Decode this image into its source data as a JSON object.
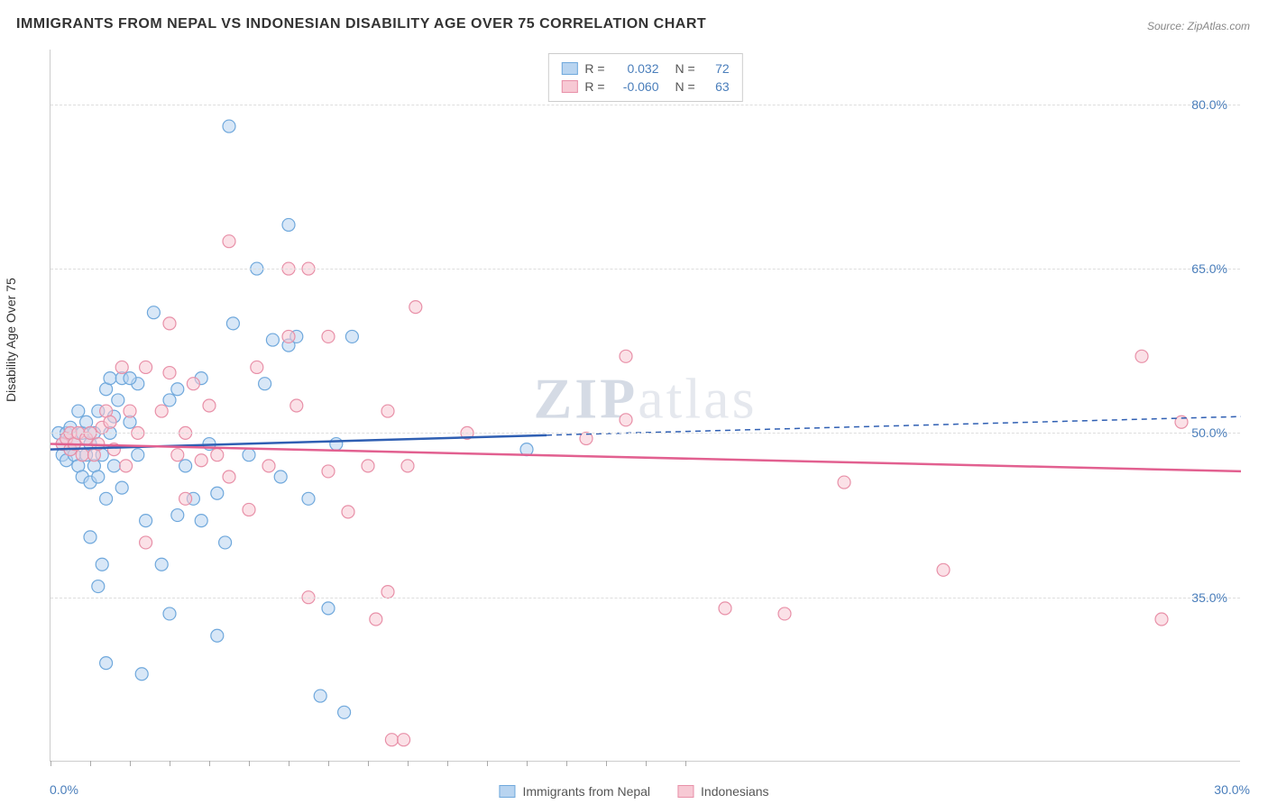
{
  "title": "IMMIGRANTS FROM NEPAL VS INDONESIAN DISABILITY AGE OVER 75 CORRELATION CHART",
  "source_label": "Source:",
  "source_value": "ZipAtlas.com",
  "ylabel": "Disability Age Over 75",
  "watermark_bold": "ZIP",
  "watermark_rest": "atlas",
  "chart": {
    "type": "scatter",
    "background_color": "#ffffff",
    "grid_color": "#dddddd",
    "axis_color": "#cccccc",
    "text_color": "#333333",
    "value_color": "#4a7ebb",
    "xlim": [
      0,
      30
    ],
    "ylim": [
      20,
      85
    ],
    "xticks": [
      0,
      30
    ],
    "xtick_labels": [
      "0.0%",
      "30.0%"
    ],
    "xtick_minor": [
      0,
      1,
      2,
      3,
      4,
      5,
      6,
      7,
      8,
      9,
      10,
      11,
      12,
      13,
      14,
      15,
      16
    ],
    "yticks": [
      35,
      50,
      65,
      80
    ],
    "ytick_labels": [
      "35.0%",
      "50.0%",
      "65.0%",
      "80.0%"
    ],
    "label_fontsize": 14,
    "title_fontsize": 16,
    "marker_radius": 7,
    "marker_opacity": 0.55,
    "line_width": 2.5
  },
  "series": [
    {
      "name": "Immigrants from Nepal",
      "color_fill": "#b8d4f0",
      "color_stroke": "#6fa8dc",
      "line_color": "#2f5fb3",
      "R": "0.032",
      "N": "72",
      "trend": {
        "x1": 0,
        "y1": 48.5,
        "x2": 12.5,
        "y2": 49.8,
        "x1_ext": 12.5,
        "y1_ext": 49.8,
        "x2_ext": 30,
        "y2_ext": 51.5
      },
      "points": [
        [
          0.2,
          50
        ],
        [
          0.3,
          49
        ],
        [
          0.3,
          48
        ],
        [
          0.4,
          50
        ],
        [
          0.4,
          47.5
        ],
        [
          0.5,
          50.5
        ],
        [
          0.5,
          48.5
        ],
        [
          0.6,
          48
        ],
        [
          0.6,
          49
        ],
        [
          0.7,
          47
        ],
        [
          0.7,
          52
        ],
        [
          0.8,
          50
        ],
        [
          0.8,
          46
        ],
        [
          0.9,
          48
        ],
        [
          0.9,
          51
        ],
        [
          1.0,
          49
        ],
        [
          1.0,
          45.5
        ],
        [
          1.1,
          47
        ],
        [
          1.1,
          50
        ],
        [
          1.2,
          52
        ],
        [
          1.2,
          46
        ],
        [
          1.3,
          48
        ],
        [
          1.4,
          54
        ],
        [
          1.4,
          44
        ],
        [
          1.5,
          50
        ],
        [
          1.5,
          55
        ],
        [
          1.6,
          47
        ],
        [
          1.7,
          53
        ],
        [
          1.8,
          55
        ],
        [
          1.8,
          45
        ],
        [
          1.2,
          36
        ],
        [
          1.3,
          38
        ],
        [
          2.0,
          51
        ],
        [
          2.2,
          48
        ],
        [
          2.4,
          42
        ],
        [
          1.0,
          40.5
        ],
        [
          2.2,
          54.5
        ],
        [
          2.6,
          61
        ],
        [
          2.8,
          38
        ],
        [
          3.0,
          53
        ],
        [
          3.2,
          42.5
        ],
        [
          3.2,
          54
        ],
        [
          3.4,
          47
        ],
        [
          3.6,
          44
        ],
        [
          3.8,
          42
        ],
        [
          3.8,
          55
        ],
        [
          4.0,
          49
        ],
        [
          4.2,
          44.5
        ],
        [
          4.4,
          40
        ],
        [
          4.6,
          60
        ],
        [
          4.5,
          78
        ],
        [
          5.0,
          48
        ],
        [
          5.2,
          65
        ],
        [
          5.4,
          54.5
        ],
        [
          5.6,
          58.5
        ],
        [
          5.8,
          46
        ],
        [
          6.0,
          58
        ],
        [
          6.0,
          69
        ],
        [
          6.2,
          58.8
        ],
        [
          7.6,
          58.8
        ],
        [
          6.5,
          44
        ],
        [
          6.8,
          26
        ],
        [
          7.0,
          34
        ],
        [
          7.2,
          49
        ],
        [
          7.4,
          24.5
        ],
        [
          12.0,
          48.5
        ],
        [
          1.4,
          29
        ],
        [
          2.3,
          28
        ],
        [
          4.2,
          31.5
        ],
        [
          3.0,
          33.5
        ],
        [
          1.6,
          51.5
        ],
        [
          2.0,
          55
        ]
      ]
    },
    {
      "name": "Indonesians",
      "color_fill": "#f7c9d4",
      "color_stroke": "#e890a8",
      "line_color": "#e26090",
      "R": "-0.060",
      "N": "63",
      "trend": {
        "x1": 0,
        "y1": 49.0,
        "x2": 30,
        "y2": 46.5
      },
      "points": [
        [
          0.3,
          49
        ],
        [
          0.4,
          49.5
        ],
        [
          0.5,
          48.5
        ],
        [
          0.5,
          50
        ],
        [
          0.6,
          49
        ],
        [
          0.7,
          50
        ],
        [
          0.8,
          48
        ],
        [
          0.9,
          49.5
        ],
        [
          1.0,
          50
        ],
        [
          1.1,
          48
        ],
        [
          1.2,
          49
        ],
        [
          1.3,
          50.5
        ],
        [
          1.4,
          52
        ],
        [
          1.5,
          51
        ],
        [
          1.6,
          48.5
        ],
        [
          1.8,
          56
        ],
        [
          1.9,
          47
        ],
        [
          2.0,
          52
        ],
        [
          2.2,
          50
        ],
        [
          2.4,
          56
        ],
        [
          2.4,
          40
        ],
        [
          2.8,
          52
        ],
        [
          3.0,
          60
        ],
        [
          3.0,
          55.5
        ],
        [
          3.2,
          48
        ],
        [
          3.4,
          44
        ],
        [
          3.4,
          50
        ],
        [
          3.6,
          54.5
        ],
        [
          3.8,
          47.5
        ],
        [
          4.0,
          52.5
        ],
        [
          4.2,
          48
        ],
        [
          4.5,
          46
        ],
        [
          5.0,
          43
        ],
        [
          5.2,
          56
        ],
        [
          5.5,
          47
        ],
        [
          6.0,
          58.8
        ],
        [
          6.2,
          52.5
        ],
        [
          6.5,
          65
        ],
        [
          6.5,
          35
        ],
        [
          7.0,
          46.5
        ],
        [
          7.0,
          58.8
        ],
        [
          7.5,
          42.8
        ],
        [
          8.0,
          47
        ],
        [
          8.2,
          33
        ],
        [
          8.5,
          52
        ],
        [
          8.5,
          35.5
        ],
        [
          8.6,
          22
        ],
        [
          8.9,
          22
        ],
        [
          9.0,
          47
        ],
        [
          9.2,
          61.5
        ],
        [
          10.5,
          50
        ],
        [
          13.5,
          49.5
        ],
        [
          14.5,
          51.2
        ],
        [
          14.5,
          57
        ],
        [
          17.0,
          34
        ],
        [
          18.5,
          33.5
        ],
        [
          20.0,
          45.5
        ],
        [
          22.5,
          37.5
        ],
        [
          27.5,
          57
        ],
        [
          28.5,
          51
        ],
        [
          28.0,
          33
        ],
        [
          4.5,
          67.5
        ],
        [
          6.0,
          65
        ]
      ]
    }
  ],
  "legend_top": {
    "R_label": "R =",
    "N_label": "N ="
  },
  "legend_bottom": {
    "items": [
      "Immigrants from Nepal",
      "Indonesians"
    ]
  }
}
